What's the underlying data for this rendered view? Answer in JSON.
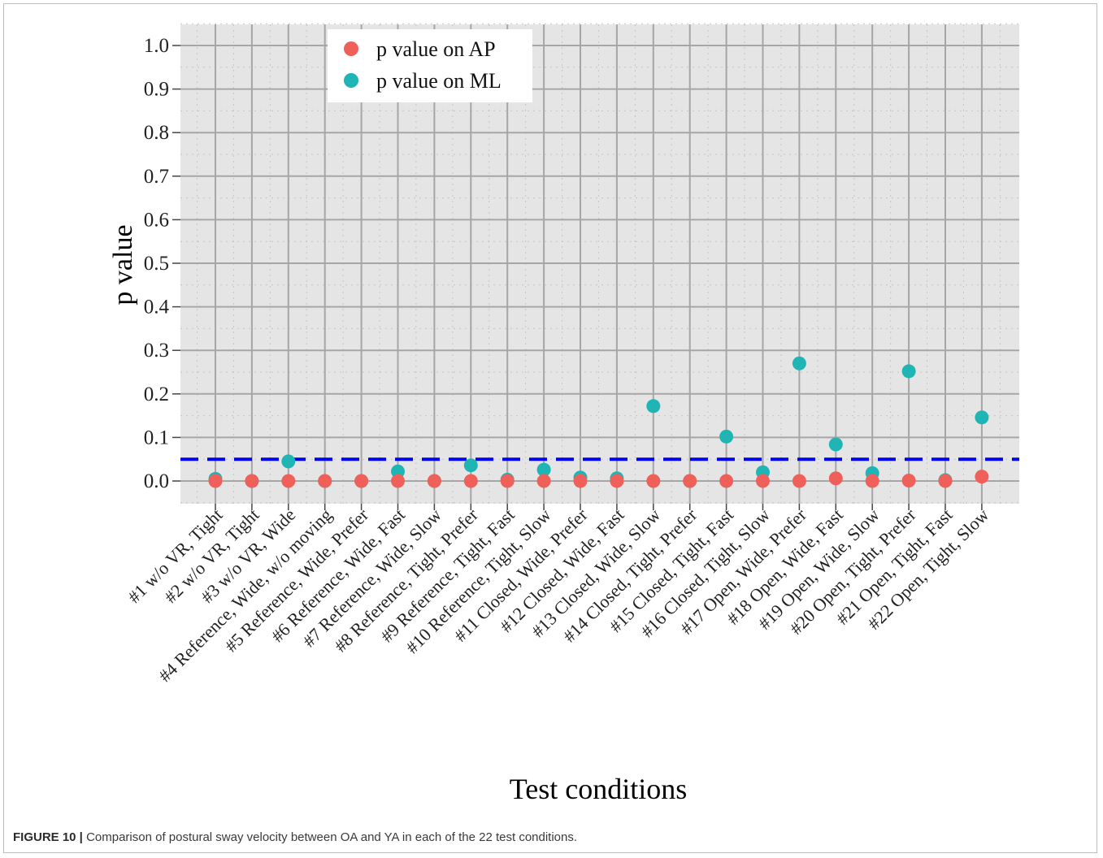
{
  "caption": {
    "label": "FIGURE 10 |",
    "text": "Comparison of postural sway velocity between OA and YA in each of the 22 test conditions."
  },
  "chart_data": {
    "type": "scatter",
    "title": "",
    "xlabel": "Test conditions",
    "ylabel": "p value",
    "ylim": [
      -0.05,
      1.05
    ],
    "yticks": [
      "0.0",
      "0.1",
      "0.2",
      "0.3",
      "0.4",
      "0.5",
      "0.6",
      "0.7",
      "0.8",
      "0.9",
      "1.0"
    ],
    "grid": true,
    "legend_position": "top-left",
    "reference_line": {
      "y": 0.05,
      "style": "dashed",
      "color": "#0000ee"
    },
    "categories": [
      "#1 w/o VR, Tight",
      "#2 w/o VR, Tight",
      "#3 w/o VR, Wide",
      "#4 Reference, Wide, w/o moving",
      "#5 Reference, Wide, Prefer",
      "#6 Reference, Wide, Fast",
      "#7 Reference, Wide, Slow",
      "#8 Reference, Tight, Prefer",
      "#9 Reference, Tight, Fast",
      "#10 Reference, Tight, Slow",
      "#11 Closed, Wide, Prefer",
      "#12 Closed, Wide, Fast",
      "#13 Closed, Wide, Slow",
      "#14 Closed, Tight, Prefer",
      "#15 Closed, Tight, Fast",
      "#16 Closed, Tight, Slow",
      "#17 Open, Wide, Prefer",
      "#18 Open, Wide, Fast",
      "#19 Open, Wide, Slow",
      "#20 Open, Tight, Prefer",
      "#21 Open, Tight, Fast",
      "#22 Open, Tight, Slow"
    ],
    "series": [
      {
        "name": "p value on AP",
        "color": "#f0605a",
        "values": [
          0.0,
          0.0,
          0.0,
          0.0,
          0.0,
          0.0,
          0.0,
          0.0,
          0.0,
          0.0,
          0.0,
          0.0,
          0.0,
          0.0,
          0.0,
          0.0,
          0.0,
          0.006,
          0.0,
          0.001,
          0.0,
          0.01
        ]
      },
      {
        "name": "p value on ML",
        "color": "#1fb5b5",
        "values": [
          0.005,
          0.0,
          0.045,
          0.0,
          0.0,
          0.022,
          0.0,
          0.036,
          0.003,
          0.026,
          0.008,
          0.006,
          0.172,
          0.0,
          0.102,
          0.02,
          0.27,
          0.084,
          0.018,
          0.252,
          0.002,
          0.146
        ]
      }
    ]
  }
}
